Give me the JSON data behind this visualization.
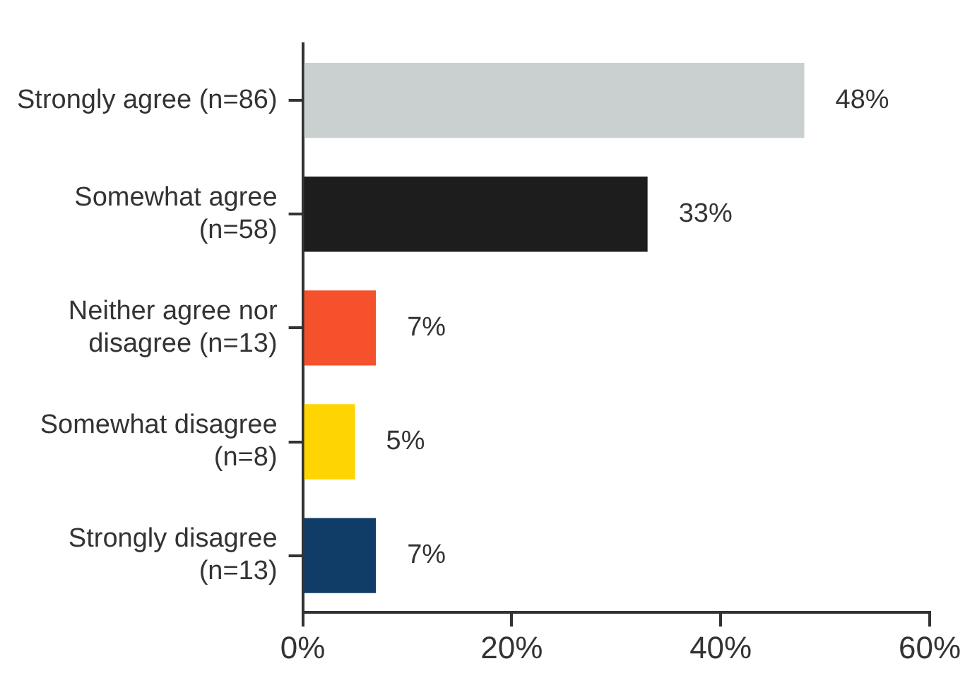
{
  "chart_data": {
    "type": "bar",
    "orientation": "horizontal",
    "categories": [
      "Strongly agree (n=86)",
      "Somewhat agree\n(n=58)",
      "Neither agree nor\ndisagree (n=13)",
      "Somewhat disagree\n(n=8)",
      "Strongly disagree\n(n=13)"
    ],
    "values": [
      48,
      33,
      7,
      5,
      7
    ],
    "colors": [
      "#c9d0cf",
      "#1d1d1d",
      "#f4512c",
      "#fed500",
      "#0f3d68"
    ],
    "value_labels": [
      "48%",
      "33%",
      "7%",
      "5%",
      "7%"
    ],
    "xlim": [
      0,
      60
    ],
    "xticks": [
      {
        "value": 0,
        "label": "0%"
      },
      {
        "value": 20,
        "label": "20%"
      },
      {
        "value": 40,
        "label": "40%"
      },
      {
        "value": 60,
        "label": "60%"
      }
    ],
    "grid": false,
    "legend": false
  }
}
